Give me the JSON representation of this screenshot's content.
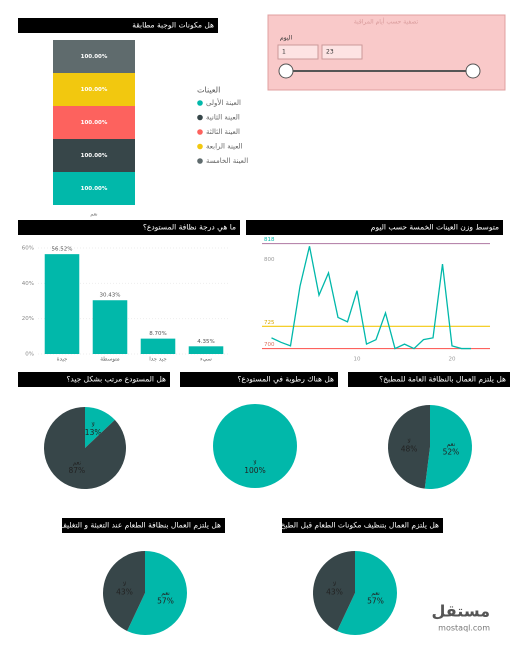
{
  "slicer": {
    "title": "تصفية حسب أيام المراقبة",
    "field": "اليوم",
    "from": "1",
    "to": "23"
  },
  "watermark": {
    "brand": "مستقل",
    "site": "mostaql.com"
  },
  "chart_data": [
    {
      "type": "stacked",
      "title": "هل مكونات الوجبة مطابقة",
      "categories": [
        "نعم"
      ],
      "legend_title": "العينات",
      "ylim": [
        0,
        500
      ],
      "series": [
        {
          "name": "العينة الأولى",
          "color": "#01B8AA",
          "values": [
            100
          ],
          "value_labels": [
            "100.00%"
          ]
        },
        {
          "name": "العينة الثانية",
          "color": "#374649",
          "values": [
            100
          ],
          "value_labels": [
            "100.00%"
          ]
        },
        {
          "name": "العينة الثالثة",
          "color": "#FD625E",
          "values": [
            100
          ],
          "value_labels": [
            "100.00%"
          ]
        },
        {
          "name": "العينة الرابعة",
          "color": "#F2C80F",
          "values": [
            100
          ],
          "value_labels": [
            "100.00%"
          ]
        },
        {
          "name": "العينة الخامسة",
          "color": "#5F6B6D",
          "values": [
            100
          ],
          "value_labels": [
            "100.00%"
          ]
        }
      ]
    },
    {
      "type": "bar",
      "title": "ما هي درجة نظافة المستودع؟",
      "categories": [
        "جيدة",
        "متوسطة",
        "جيد جدا",
        "سيء"
      ],
      "values": [
        56.52,
        30.43,
        8.7,
        4.35
      ],
      "value_labels": [
        "56.52%",
        "30.43%",
        "8.70%",
        "4.35%"
      ],
      "color": "#01B8AA",
      "ylim": [
        0,
        60
      ],
      "yticks": [
        {
          "value": 0,
          "label": "0%"
        },
        {
          "value": 20,
          "label": "20%"
        },
        {
          "value": 40,
          "label": "40%"
        },
        {
          "value": 60,
          "label": "60%"
        }
      ],
      "grid": true
    },
    {
      "type": "line",
      "title": "متوسط وزن العينات الخمسة حسب اليوم",
      "x": [
        1,
        2,
        3,
        4,
        5,
        6,
        7,
        8,
        9,
        10,
        11,
        12,
        13,
        14,
        15,
        16,
        17,
        18,
        19,
        20,
        21,
        22
      ],
      "series": [
        {
          "color": "#01B8AA",
          "values": [
            712,
            707,
            703,
            770,
            815,
            760,
            785,
            735,
            730,
            765,
            705,
            710,
            740,
            700,
            705,
            700,
            710,
            712,
            795,
            703,
            700,
            700
          ]
        }
      ],
      "xlim": [
        0,
        24
      ],
      "xticks": [
        10,
        20
      ],
      "ylim": [
        695,
        822
      ],
      "yticks": [
        800
      ],
      "reference_lines": [
        {
          "value": 818,
          "color": "#B887AD",
          "label_color": "#01B8AA"
        },
        {
          "value": 725,
          "color": "#F2C80F",
          "label_color": "#D9A800"
        },
        {
          "value": 700,
          "color": "#FD625E",
          "label_color": "#D9705E"
        }
      ]
    },
    {
      "type": "pie",
      "title": "هل المستودع مرتب بشكل جيد؟",
      "categories": [
        "لا",
        "نعم"
      ],
      "values": [
        13,
        87
      ],
      "value_labels": [
        "13%",
        "87%"
      ],
      "colors": [
        "#01B8AA",
        "#374649"
      ]
    },
    {
      "type": "pie",
      "title": "هل هناك رطوبة في المستودع؟",
      "categories": [
        "لا"
      ],
      "values": [
        100
      ],
      "value_labels": [
        "100%"
      ],
      "colors": [
        "#01B8AA"
      ]
    },
    {
      "type": "pie",
      "title": "هل يلتزم العمال بالنظافة العامة للمطبخ؟",
      "categories": [
        "نعم",
        "لا"
      ],
      "values": [
        52,
        48
      ],
      "value_labels": [
        "52%",
        "48%"
      ],
      "colors": [
        "#01B8AA",
        "#374649"
      ]
    },
    {
      "type": "pie",
      "title": "هل يلتزم العمال بنظافة الطعام عند التعبئة و التغليف؟",
      "categories": [
        "نعم",
        "لا"
      ],
      "values": [
        57,
        43
      ],
      "value_labels": [
        "57%",
        "43%"
      ],
      "colors": [
        "#01B8AA",
        "#374649"
      ]
    },
    {
      "type": "pie",
      "title": "هل يلتزم العمال بتنظيف مكونات الطعام قبل الطبخ؟",
      "categories": [
        "نعم",
        "لا"
      ],
      "values": [
        57,
        43
      ],
      "value_labels": [
        "57%",
        "43%"
      ],
      "colors": [
        "#01B8AA",
        "#374649"
      ]
    }
  ]
}
